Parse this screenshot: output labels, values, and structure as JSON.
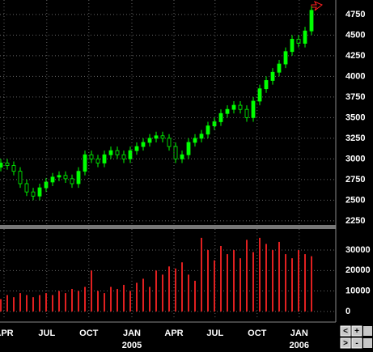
{
  "chart_data": [
    {
      "type": "candlestick",
      "open": [
        2900,
        2950,
        2920,
        2850,
        2700,
        2600,
        2550,
        2650,
        2720,
        2780,
        2800,
        2760,
        2700,
        2850,
        3050,
        3000,
        2950,
        3050,
        3100,
        3050,
        3000,
        3100,
        3150,
        3200,
        3250,
        3280,
        3250,
        3150,
        3000,
        3050,
        3200,
        3250,
        3300,
        3400,
        3450,
        3550,
        3600,
        3650,
        3600,
        3500,
        3700,
        3850,
        3950,
        4050,
        4150,
        4300,
        4450,
        4400,
        4550
      ],
      "high": [
        3000,
        3000,
        2970,
        2900,
        2750,
        2650,
        2700,
        2770,
        2830,
        2850,
        2850,
        2810,
        2900,
        3100,
        3100,
        3050,
        3100,
        3150,
        3150,
        3100,
        3150,
        3200,
        3250,
        3300,
        3330,
        3330,
        3300,
        3200,
        3100,
        3250,
        3300,
        3350,
        3450,
        3500,
        3600,
        3650,
        3700,
        3700,
        3650,
        3750,
        3900,
        4000,
        4100,
        4200,
        4350,
        4500,
        4500,
        4600,
        4850
      ],
      "low": [
        2850,
        2870,
        2800,
        2650,
        2550,
        2500,
        2500,
        2600,
        2670,
        2730,
        2710,
        2650,
        2650,
        2800,
        2950,
        2900,
        2900,
        3000,
        3000,
        2950,
        2950,
        3050,
        3100,
        3150,
        3200,
        3200,
        3100,
        2950,
        2950,
        3000,
        3150,
        3200,
        3250,
        3350,
        3400,
        3500,
        3550,
        3550,
        3450,
        3450,
        3650,
        3800,
        3900,
        4000,
        4100,
        4250,
        4350,
        4350,
        4500
      ],
      "close": [
        2950,
        2920,
        2850,
        2700,
        2600,
        2550,
        2650,
        2720,
        2780,
        2800,
        2760,
        2700,
        2850,
        3050,
        3000,
        2950,
        3050,
        3100,
        3050,
        3000,
        3100,
        3150,
        3200,
        3250,
        3280,
        3250,
        3150,
        3000,
        3050,
        3200,
        3250,
        3300,
        3400,
        3450,
        3550,
        3600,
        3650,
        3600,
        3500,
        3700,
        3850,
        3950,
        4050,
        4150,
        4300,
        4450,
        4400,
        4550,
        4800
      ],
      "color": "#00ff00",
      "xlim": [
        -0.125,
        51.75
      ],
      "ylim": [
        2200,
        4925
      ],
      "yticks": [
        2250,
        2500,
        2750,
        3000,
        3250,
        3500,
        3750,
        4000,
        4250,
        4500,
        4750
      ],
      "grid": true
    },
    {
      "type": "bar",
      "values": [
        6000,
        8000,
        7000,
        9000,
        8000,
        7000,
        8000,
        9000,
        8000,
        10000,
        9000,
        11000,
        10000,
        12000,
        20000,
        10000,
        9000,
        12000,
        11000,
        13000,
        10000,
        14000,
        16000,
        12000,
        20000,
        18000,
        22000,
        21000,
        24000,
        18000,
        15000,
        36000,
        30000,
        25000,
        32000,
        28000,
        30000,
        26000,
        35000,
        29000,
        36000,
        33000,
        30000,
        34000,
        28000,
        26000,
        30000,
        28000,
        27000
      ],
      "color": "#e02020",
      "xlim": [
        -0.125,
        51.75
      ],
      "ylim": [
        -4000,
        40300
      ],
      "yticks": [
        0,
        10000,
        20000,
        30000
      ],
      "xticks": [
        {
          "value": 0.5,
          "label": "APR"
        },
        {
          "value": 7.1,
          "label": "JUL"
        },
        {
          "value": 13.6,
          "label": "OCT"
        },
        {
          "value": 20.25,
          "label": "JAN"
        },
        {
          "value": 26.75,
          "label": "APR"
        },
        {
          "value": 33.1,
          "label": "JUL"
        },
        {
          "value": 39.6,
          "label": "OCT"
        },
        {
          "value": 46.1,
          "label": "JAN"
        }
      ],
      "xtick_years": [
        {
          "value": 20.25,
          "label": "2005"
        },
        {
          "value": 46.1,
          "label": "2006"
        }
      ],
      "grid": true
    }
  ],
  "controls": [
    "<",
    "+",
    ">",
    "-"
  ]
}
